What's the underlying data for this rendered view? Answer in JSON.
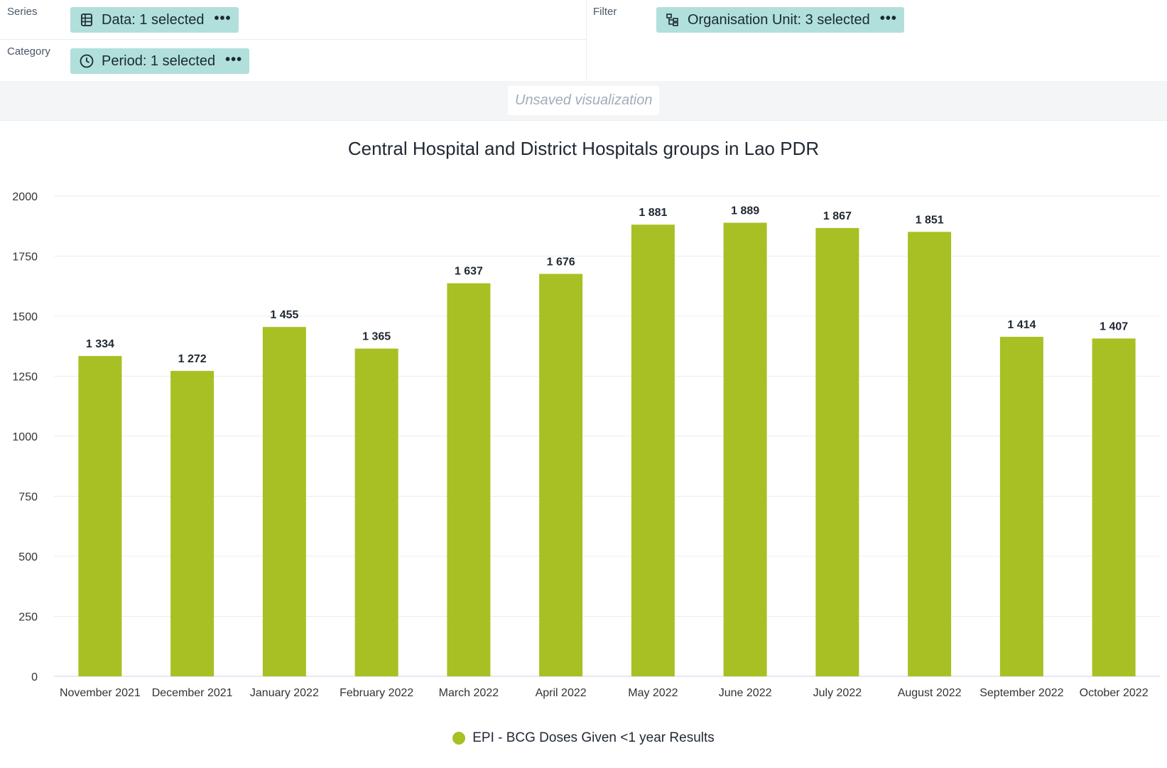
{
  "layout": {
    "series": {
      "label": "Series",
      "chip_label": "Data: 1 selected",
      "chip_icon": "table-icon"
    },
    "category": {
      "label": "Category",
      "chip_label": "Period: 1 selected",
      "chip_icon": "clock-icon"
    },
    "filter": {
      "label": "Filter",
      "chip_label": "Organisation Unit: 3 selected",
      "chip_icon": "hierarchy-icon"
    },
    "menu_glyph": "•••"
  },
  "visualization": {
    "name": "Unsaved visualization"
  },
  "colors": {
    "bar": "#a8c023",
    "chip_bg": "#b1dfdc",
    "grid": "#ececec"
  },
  "chart_data": {
    "type": "bar",
    "title": "Central Hospital and District Hospitals groups in Lao PDR",
    "categories": [
      "November 2021",
      "December 2021",
      "January 2022",
      "February 2022",
      "March 2022",
      "April 2022",
      "May 2022",
      "June 2022",
      "July 2022",
      "August 2022",
      "September 2022",
      "October 2022"
    ],
    "series": [
      {
        "name": "EPI - BCG Doses Given <1 year Results",
        "values": [
          1334,
          1272,
          1455,
          1365,
          1637,
          1676,
          1881,
          1889,
          1867,
          1851,
          1414,
          1407
        ],
        "value_labels": [
          "1 334",
          "1 272",
          "1 455",
          "1 365",
          "1 637",
          "1 676",
          "1 881",
          "1 889",
          "1 867",
          "1 851",
          "1 414",
          "1 407"
        ]
      }
    ],
    "ylim": [
      0,
      2000
    ],
    "yticks": [
      0,
      250,
      500,
      750,
      1000,
      1250,
      1500,
      1750,
      2000
    ],
    "grid": true,
    "legend_position": "bottom"
  }
}
